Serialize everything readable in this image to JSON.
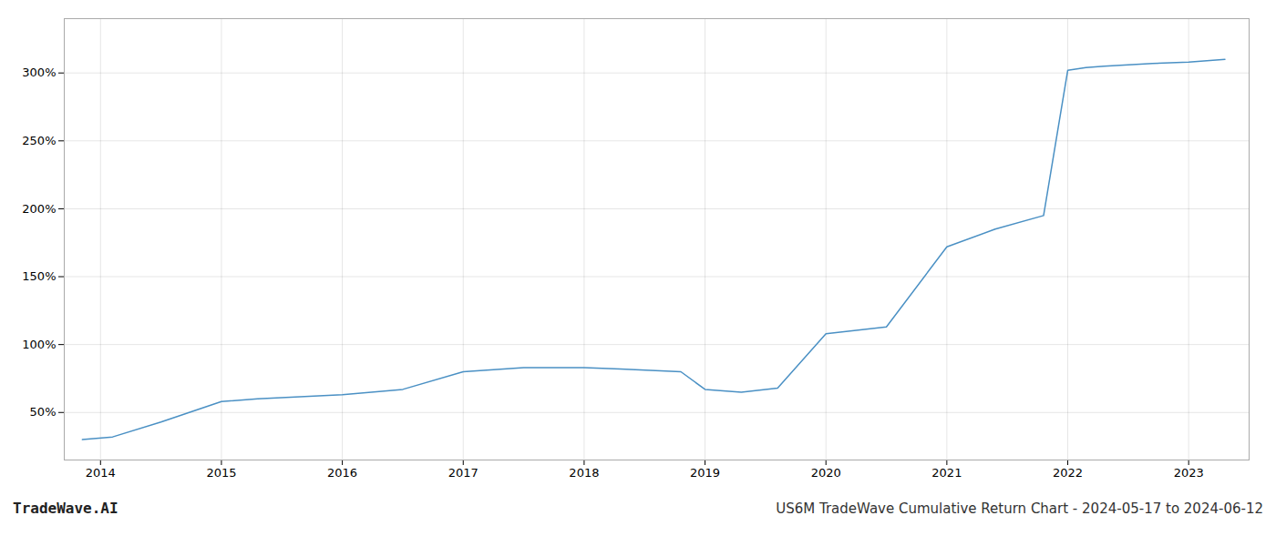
{
  "chart_data": {
    "type": "line",
    "title": "US6M TradeWave Cumulative Return Chart - 2024-05-17 to 2024-06-12",
    "annotations": [
      "TradeWave.AI"
    ],
    "x": [
      2013.85,
      2014.1,
      2014.5,
      2015.0,
      2015.3,
      2016.0,
      2016.5,
      2017.0,
      2017.5,
      2018.0,
      2018.3,
      2018.8,
      2019.0,
      2019.3,
      2019.6,
      2020.0,
      2020.2,
      2020.5,
      2021.0,
      2021.4,
      2021.8,
      2022.0,
      2022.15,
      2022.3,
      2022.5,
      2022.7,
      2023.0,
      2023.3
    ],
    "values": [
      30,
      32,
      43,
      58,
      60,
      63,
      67,
      80,
      83,
      83,
      82,
      80,
      67,
      65,
      68,
      108,
      110,
      113,
      172,
      185,
      195,
      302,
      304,
      305,
      306,
      307,
      308,
      310
    ],
    "color": "#4a90c4",
    "xlim": [
      2013.7,
      2023.5
    ],
    "xticks": [
      2014,
      2015,
      2016,
      2017,
      2018,
      2019,
      2020,
      2021,
      2022,
      2023
    ],
    "ylim": [
      15,
      340
    ],
    "yticks": [
      {
        "value": 50,
        "label": "50%"
      },
      {
        "value": 100,
        "label": "100%"
      },
      {
        "value": 150,
        "label": "150%"
      },
      {
        "value": 200,
        "label": "200%"
      },
      {
        "value": 250,
        "label": "250%"
      },
      {
        "value": 300,
        "label": "300%"
      }
    ],
    "grid": true
  }
}
